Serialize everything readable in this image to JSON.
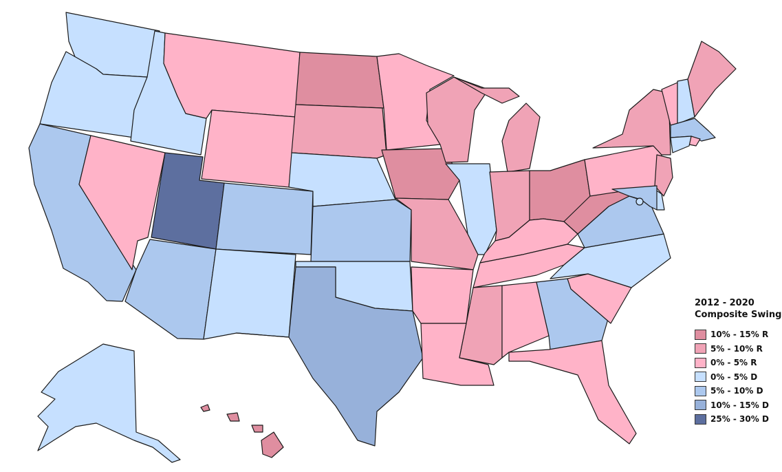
{
  "legend": {
    "title_line1": "2012 - 2020",
    "title_line2": "Composite Swing",
    "items": [
      {
        "label": "10% - 15% R",
        "color": "#df8ea0"
      },
      {
        "label": "5% - 10% R",
        "color": "#f0a3b6"
      },
      {
        "label": "0% - 5% R",
        "color": "#ffb3c8"
      },
      {
        "label": "0% - 5% D",
        "color": "#c6e0ff"
      },
      {
        "label": "5% - 10% D",
        "color": "#acc8ee"
      },
      {
        "label": "10% - 15% D",
        "color": "#97b1da"
      },
      {
        "label": "25% - 30% D",
        "color": "#5d6f9f"
      }
    ]
  },
  "map": {
    "states": [
      {
        "name": "Washington",
        "category": "0% - 5% D"
      },
      {
        "name": "Oregon",
        "category": "0% - 5% D"
      },
      {
        "name": "California",
        "category": "5% - 10% D"
      },
      {
        "name": "Idaho",
        "category": "0% - 5% D"
      },
      {
        "name": "Nevada",
        "category": "0% - 5% R"
      },
      {
        "name": "Utah",
        "category": "25% - 30% D"
      },
      {
        "name": "Arizona",
        "category": "5% - 10% D"
      },
      {
        "name": "Montana",
        "category": "0% - 5% R"
      },
      {
        "name": "Wyoming",
        "category": "0% - 5% R"
      },
      {
        "name": "Colorado",
        "category": "5% - 10% D"
      },
      {
        "name": "New Mexico",
        "category": "0% - 5% D"
      },
      {
        "name": "North Dakota",
        "category": "10% - 15% R"
      },
      {
        "name": "South Dakota",
        "category": "5% - 10% R"
      },
      {
        "name": "Nebraska",
        "category": "0% - 5% D"
      },
      {
        "name": "Kansas",
        "category": "5% - 10% D"
      },
      {
        "name": "Oklahoma",
        "category": "0% - 5% D"
      },
      {
        "name": "Texas",
        "category": "10% - 15% D"
      },
      {
        "name": "Minnesota",
        "category": "0% - 5% R"
      },
      {
        "name": "Iowa",
        "category": "10% - 15% R"
      },
      {
        "name": "Missouri",
        "category": "5% - 10% R"
      },
      {
        "name": "Arkansas",
        "category": "0% - 5% R"
      },
      {
        "name": "Louisiana",
        "category": "0% - 5% R"
      },
      {
        "name": "Wisconsin",
        "category": "5% - 10% R"
      },
      {
        "name": "Illinois",
        "category": "0% - 5% D"
      },
      {
        "name": "Michigan",
        "category": "5% - 10% R"
      },
      {
        "name": "Indiana",
        "category": "5% - 10% R"
      },
      {
        "name": "Ohio",
        "category": "10% - 15% R"
      },
      {
        "name": "Kentucky",
        "category": "0% - 5% R"
      },
      {
        "name": "Tennessee",
        "category": "0% - 5% R"
      },
      {
        "name": "Mississippi",
        "category": "5% - 10% R"
      },
      {
        "name": "Alabama",
        "category": "0% - 5% R"
      },
      {
        "name": "Georgia",
        "category": "5% - 10% D"
      },
      {
        "name": "Florida",
        "category": "0% - 5% R"
      },
      {
        "name": "South Carolina",
        "category": "0% - 5% R"
      },
      {
        "name": "North Carolina",
        "category": "0% - 5% D"
      },
      {
        "name": "Virginia",
        "category": "5% - 10% D"
      },
      {
        "name": "West Virginia",
        "category": "10% - 15% R"
      },
      {
        "name": "Pennsylvania",
        "category": "0% - 5% R"
      },
      {
        "name": "New York",
        "category": "5% - 10% R"
      },
      {
        "name": "Vermont",
        "category": "0% - 5% R"
      },
      {
        "name": "New Hampshire",
        "category": "0% - 5% D"
      },
      {
        "name": "Maine",
        "category": "5% - 10% R"
      },
      {
        "name": "Massachusetts",
        "category": "5% - 10% D"
      },
      {
        "name": "Rhode Island",
        "category": "0% - 5% R"
      },
      {
        "name": "Connecticut",
        "category": "0% - 5% D"
      },
      {
        "name": "New Jersey",
        "category": "5% - 10% R"
      },
      {
        "name": "Delaware",
        "category": "0% - 5% D"
      },
      {
        "name": "Maryland",
        "category": "5% - 10% D"
      },
      {
        "name": "District of Columbia",
        "category": "0% - 5% D"
      },
      {
        "name": "Alaska",
        "category": "0% - 5% D"
      },
      {
        "name": "Hawaii",
        "category": "10% - 15% R"
      }
    ]
  }
}
